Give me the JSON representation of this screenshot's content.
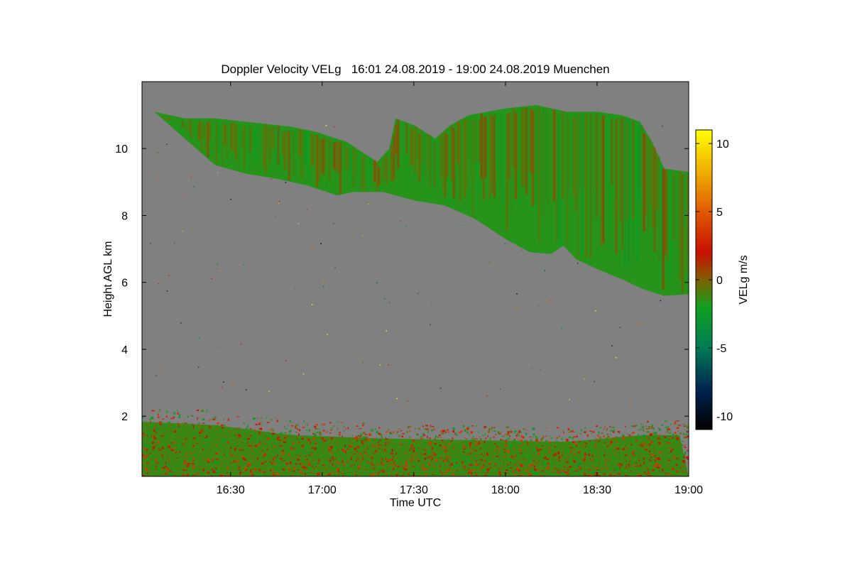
{
  "chart_data": {
    "type": "heatmap",
    "title": "Doppler Velocity VELg   16:01 24.08.2019 - 19:00 24.08.2019 Muenchen",
    "xlabel": "Time UTC",
    "ylabel": "Height AGL km",
    "colorbar_label": "VELg m/s",
    "x_range_minutes_utc": [
      961,
      1140
    ],
    "xlim": [
      "16:01",
      "19:00"
    ],
    "ylim": [
      0.2,
      12.0
    ],
    "x_ticks": [
      {
        "label": "16:30",
        "minute": 990
      },
      {
        "label": "17:00",
        "minute": 1020
      },
      {
        "label": "17:30",
        "minute": 1050
      },
      {
        "label": "18:00",
        "minute": 1080
      },
      {
        "label": "18:30",
        "minute": 1110
      },
      {
        "label": "19:00",
        "minute": 1140
      }
    ],
    "y_ticks": [
      {
        "label": "2",
        "value": 2
      },
      {
        "label": "4",
        "value": 4
      },
      {
        "label": "6",
        "value": 6
      },
      {
        "label": "8",
        "value": 8
      },
      {
        "label": "10",
        "value": 10
      }
    ],
    "colorbar_range": [
      -11,
      11
    ],
    "colorbar_ticks": [
      {
        "label": "10",
        "value": 10
      },
      {
        "label": "5",
        "value": 5
      },
      {
        "label": "0",
        "value": 0
      },
      {
        "label": "-5",
        "value": -5
      },
      {
        "label": "-10",
        "value": -10
      }
    ],
    "colormap": [
      {
        "value": -11,
        "color": "#000000"
      },
      {
        "value": -8,
        "color": "#002550"
      },
      {
        "value": -5,
        "color": "#007c55"
      },
      {
        "value": -2,
        "color": "#10a020"
      },
      {
        "value": 0,
        "color": "#806000"
      },
      {
        "value": 2,
        "color": "#c81000"
      },
      {
        "value": 5,
        "color": "#e05a00"
      },
      {
        "value": 8,
        "color": "#f0b000"
      },
      {
        "value": 11,
        "color": "#ffff00"
      }
    ],
    "no_data_color": "#808080",
    "upper_cloud_layer": {
      "description_values": "Ice cloud with predominantly negative (downward) velocities of about -1 to -3 m/s, mixed with near-zero/positive patches",
      "top_km": [
        {
          "minute": 965,
          "km": 11.1
        },
        {
          "minute": 975,
          "km": 10.9
        },
        {
          "minute": 985,
          "km": 10.9
        },
        {
          "minute": 1000,
          "km": 10.75
        },
        {
          "minute": 1010,
          "km": 10.65
        },
        {
          "minute": 1018,
          "km": 10.5
        },
        {
          "minute": 1028,
          "km": 10.2
        },
        {
          "minute": 1033,
          "km": 9.9
        },
        {
          "minute": 1038,
          "km": 9.6
        },
        {
          "minute": 1042,
          "km": 10.0
        },
        {
          "minute": 1044,
          "km": 10.9
        },
        {
          "minute": 1050,
          "km": 10.7
        },
        {
          "minute": 1057,
          "km": 10.3
        },
        {
          "minute": 1062,
          "km": 10.7
        },
        {
          "minute": 1068,
          "km": 11.0
        },
        {
          "minute": 1080,
          "km": 11.2
        },
        {
          "minute": 1090,
          "km": 11.3
        },
        {
          "minute": 1100,
          "km": 11.1
        },
        {
          "minute": 1110,
          "km": 11.1
        },
        {
          "minute": 1118,
          "km": 11.0
        },
        {
          "minute": 1124,
          "km": 10.8
        },
        {
          "minute": 1128,
          "km": 10.2
        },
        {
          "minute": 1132,
          "km": 9.4
        },
        {
          "minute": 1140,
          "km": 9.3
        }
      ],
      "base_km": [
        {
          "minute": 965,
          "km": 11.1
        },
        {
          "minute": 975,
          "km": 10.3
        },
        {
          "minute": 985,
          "km": 9.5
        },
        {
          "minute": 995,
          "km": 9.25
        },
        {
          "minute": 1005,
          "km": 9.1
        },
        {
          "minute": 1015,
          "km": 8.9
        },
        {
          "minute": 1025,
          "km": 8.6
        },
        {
          "minute": 1030,
          "km": 8.7
        },
        {
          "minute": 1040,
          "km": 8.7
        },
        {
          "minute": 1050,
          "km": 8.45
        },
        {
          "minute": 1060,
          "km": 8.3
        },
        {
          "minute": 1070,
          "km": 7.9
        },
        {
          "minute": 1080,
          "km": 7.3
        },
        {
          "minute": 1088,
          "km": 6.9
        },
        {
          "minute": 1095,
          "km": 6.85
        },
        {
          "minute": 1099,
          "km": 7.1
        },
        {
          "minute": 1103,
          "km": 6.7
        },
        {
          "minute": 1110,
          "km": 6.4
        },
        {
          "minute": 1118,
          "km": 6.1
        },
        {
          "minute": 1125,
          "km": 5.8
        },
        {
          "minute": 1132,
          "km": 5.6
        },
        {
          "minute": 1140,
          "km": 5.65
        }
      ]
    },
    "boundary_layer": {
      "description_values": "Noisy mixed returns from near-surface up to about 1.6-2.4 km, velocities roughly -3 to +4 m/s",
      "top_km": [
        {
          "minute": 961,
          "km": 2.3
        },
        {
          "minute": 985,
          "km": 2.2
        },
        {
          "minute": 1010,
          "km": 1.9
        },
        {
          "minute": 1040,
          "km": 1.8
        },
        {
          "minute": 1070,
          "km": 1.75
        },
        {
          "minute": 1100,
          "km": 1.7
        },
        {
          "minute": 1125,
          "km": 1.9
        },
        {
          "minute": 1140,
          "km": 1.9
        }
      ]
    }
  }
}
